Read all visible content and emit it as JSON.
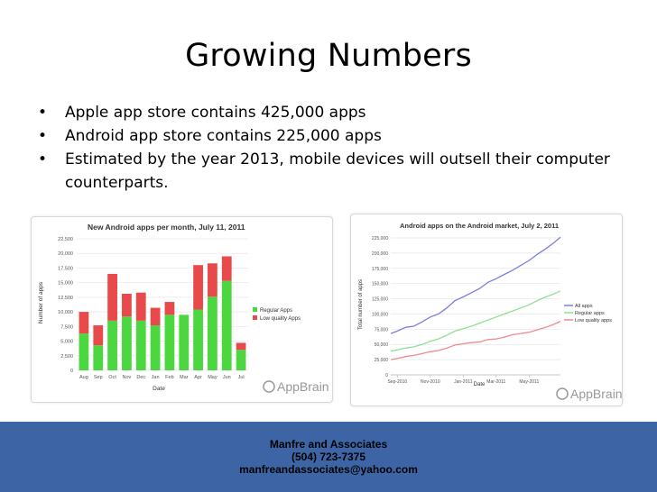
{
  "slide": {
    "title": "Growing Numbers",
    "bullets": [
      "Apple app store contains 425,000 apps",
      "Android app store contains 225,000 apps",
      "Estimated by the year 2013, mobile devices will outsell their computer counterparts."
    ],
    "bullet_symbol": "•",
    "footer": {
      "company": "Manfre and Associates",
      "phone": "(504) 723-7375",
      "email": "manfreandassociates@yahoo.com"
    },
    "colors": {
      "footer_bg": "#3d65a5",
      "regular": "#4cd640",
      "low_quality": "#e8494a",
      "all_apps": "#7b7fe0"
    }
  },
  "chart_data": [
    {
      "type": "bar",
      "stacked": true,
      "title": "New Android apps per month, July 11, 2011",
      "xlabel": "Date",
      "ylabel": "Number of apps",
      "ylim": [
        0,
        22500
      ],
      "yticks": [
        "0",
        "2,500",
        "5,000",
        "7,500",
        "10,000",
        "12,500",
        "15,000",
        "17,500",
        "20,000",
        "22,500"
      ],
      "ytick_values": [
        0,
        2500,
        5000,
        7500,
        10000,
        12500,
        15000,
        17500,
        20000,
        22500
      ],
      "categories": [
        "Aug",
        "Sep",
        "Oct",
        "Nov",
        "Dec",
        "Jan",
        "Feb",
        "Mar",
        "Apr",
        "May",
        "Jun",
        "Jul"
      ],
      "series": [
        {
          "name": "Regular Apps",
          "color": "#4cd640",
          "values": [
            6300,
            4300,
            8500,
            9200,
            8500,
            7700,
            9500,
            9500,
            10400,
            12600,
            15300,
            3500
          ]
        },
        {
          "name": "Low quality Apps",
          "color": "#e8494a",
          "values": [
            3700,
            3400,
            8000,
            3900,
            4800,
            3000,
            2200,
            0,
            7600,
            5700,
            4200,
            1200
          ]
        }
      ],
      "legend": "right",
      "watermark": "AppBrain"
    },
    {
      "type": "line",
      "title": "Android apps on the Android market, July 2, 2011",
      "xlabel": "Date",
      "ylabel": "Total number of apps",
      "ylim": [
        0,
        225000
      ],
      "yticks": [
        "0",
        "25,000",
        "50,000",
        "75,000",
        "100,000",
        "125,000",
        "150,000",
        "175,000",
        "200,000",
        "225,000"
      ],
      "ytick_values": [
        0,
        25000,
        50000,
        75000,
        100000,
        125000,
        150000,
        175000,
        200000,
        225000
      ],
      "xticks": [
        "Sep-2010",
        "Nov-2010",
        "Jan-2011",
        "Mar-2011",
        "May-2011"
      ],
      "xtick_positions": [
        0,
        2,
        4,
        6,
        8
      ],
      "xlim": [
        -0.4,
        9.9
      ],
      "x": [
        -0.4,
        0,
        0.5,
        1,
        1.5,
        2,
        2.5,
        3,
        3.5,
        4,
        4.5,
        5,
        5.5,
        6,
        6.5,
        7,
        7.5,
        8,
        8.5,
        9,
        9.5,
        9.9
      ],
      "series": [
        {
          "name": "All apps",
          "color": "#7b7fe0",
          "values": [
            68000,
            72000,
            78000,
            80000,
            87000,
            95000,
            100000,
            110000,
            122000,
            128000,
            135000,
            142000,
            152000,
            158000,
            165000,
            172000,
            180000,
            188000,
            198000,
            207000,
            217000,
            226000
          ]
        },
        {
          "name": "Regular apps",
          "color": "#8fe08f",
          "values": [
            39000,
            41000,
            44000,
            46000,
            50000,
            55000,
            59000,
            65000,
            72000,
            76000,
            80000,
            85000,
            90000,
            95000,
            100000,
            105000,
            110000,
            115000,
            122000,
            128000,
            133000,
            138000
          ]
        },
        {
          "name": "Low quality apps",
          "color": "#f08a8a",
          "values": [
            25000,
            27000,
            30000,
            32000,
            35000,
            38000,
            40000,
            44000,
            49000,
            51000,
            53000,
            54000,
            58000,
            59000,
            62000,
            66000,
            68000,
            70000,
            74000,
            78000,
            83000,
            88000
          ]
        }
      ],
      "legend": "right",
      "watermark": "AppBrain"
    }
  ]
}
